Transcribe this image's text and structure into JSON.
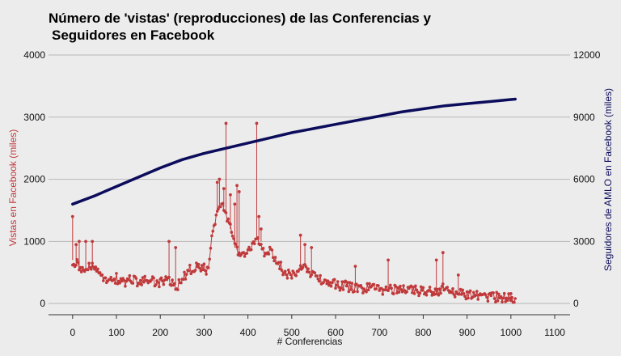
{
  "chart_data": {
    "type": "line",
    "title_lines": [
      "Número de 'vistas' (reproducciones) de las Conferencias y",
      "Seguidores en Facebook"
    ],
    "xlabel": "# Conferencias",
    "ylabel_left": "Vistas en Facebook (miles)",
    "ylabel_right": "Seguidores de AMLO en Facebook (miles)",
    "xlim": [
      -55,
      1135
    ],
    "ylim_left": [
      -180,
      4130
    ],
    "ylim_right": [
      -540,
      12390
    ],
    "x_ticks": [
      0,
      100,
      200,
      300,
      400,
      500,
      600,
      700,
      800,
      900,
      1000,
      1100
    ],
    "x_tick_labels": [
      "0",
      "100",
      "200",
      "300",
      "400",
      "500",
      "600",
      "700",
      "800",
      "900",
      "1000",
      "1100"
    ],
    "y_left_ticks": [
      0,
      1000,
      2000,
      3000,
      4000
    ],
    "y_left_tick_labels": [
      "0",
      "1000",
      "2000",
      "3000",
      "4000"
    ],
    "y_right_ticks": [
      0,
      3000,
      6000,
      9000,
      12000
    ],
    "y_right_tick_labels": [
      "0",
      "3000",
      "6000",
      "9000",
      "12000"
    ],
    "grid": true,
    "colors": {
      "views": "#c0393b",
      "followers": "#0c0c5c",
      "grid": "#b8b8b8",
      "background": "#ececec"
    },
    "series": [
      {
        "name": "Vistas en Facebook (miles)",
        "axis": "left",
        "marker": "circle",
        "x": [
          0,
          10,
          20,
          30,
          40,
          50,
          60,
          70,
          80,
          90,
          100,
          110,
          120,
          130,
          140,
          150,
          160,
          170,
          180,
          190,
          200,
          210,
          220,
          230,
          240,
          250,
          260,
          270,
          280,
          290,
          300,
          310,
          320,
          330,
          340,
          350,
          360,
          370,
          380,
          390,
          400,
          410,
          420,
          430,
          440,
          450,
          460,
          470,
          480,
          490,
          500,
          510,
          520,
          530,
          540,
          550,
          560,
          570,
          580,
          590,
          600,
          610,
          620,
          630,
          640,
          650,
          660,
          670,
          680,
          690,
          700,
          710,
          720,
          730,
          740,
          750,
          760,
          770,
          780,
          790,
          800,
          810,
          820,
          830,
          840,
          850,
          860,
          870,
          880,
          890,
          900,
          910,
          920,
          930,
          940,
          950,
          960,
          970,
          980,
          990,
          1000,
          1010
        ],
        "values": [
          700,
          640,
          580,
          540,
          600,
          560,
          470,
          420,
          390,
          360,
          410,
          350,
          330,
          370,
          390,
          340,
          350,
          380,
          360,
          330,
          350,
          370,
          400,
          310,
          280,
          420,
          470,
          560,
          590,
          580,
          560,
          540,
          1200,
          1500,
          1650,
          1450,
          1200,
          900,
          820,
          780,
          850,
          900,
          1050,
          1000,
          780,
          860,
          720,
          660,
          520,
          470,
          440,
          510,
          560,
          620,
          520,
          440,
          400,
          370,
          350,
          330,
          300,
          280,
          300,
          270,
          250,
          260,
          240,
          230,
          280,
          260,
          230,
          220,
          260,
          240,
          220,
          210,
          230,
          240,
          210,
          200,
          220,
          210,
          200,
          190,
          230,
          250,
          180,
          170,
          160,
          150,
          140,
          140,
          130,
          120,
          115,
          110,
          105,
          100,
          95,
          90,
          85,
          80
        ],
        "spikes_x": [
          0,
          8,
          15,
          30,
          45,
          220,
          235,
          330,
          335,
          345,
          350,
          360,
          370,
          375,
          380,
          420,
          425,
          430,
          520,
          530,
          545,
          645,
          720,
          830,
          845,
          880,
          1000
        ],
        "spikes_values": [
          1400,
          950,
          1000,
          1000,
          1000,
          1000,
          900,
          1950,
          2000,
          1850,
          2900,
          1750,
          1600,
          1900,
          1800,
          2900,
          1400,
          1200,
          1100,
          950,
          900,
          600,
          700,
          700,
          820,
          460,
          160
        ]
      },
      {
        "name": "Seguidores de AMLO en Facebook (miles)",
        "axis": "right",
        "marker": "line",
        "x": [
          0,
          50,
          100,
          150,
          200,
          250,
          300,
          350,
          400,
          450,
          500,
          550,
          600,
          650,
          700,
          750,
          800,
          850,
          900,
          950,
          1000,
          1010
        ],
        "values": [
          4800,
          5200,
          5650,
          6100,
          6550,
          6950,
          7250,
          7500,
          7750,
          8000,
          8250,
          8450,
          8650,
          8850,
          9050,
          9250,
          9400,
          9550,
          9650,
          9750,
          9850,
          9870
        ]
      }
    ]
  }
}
